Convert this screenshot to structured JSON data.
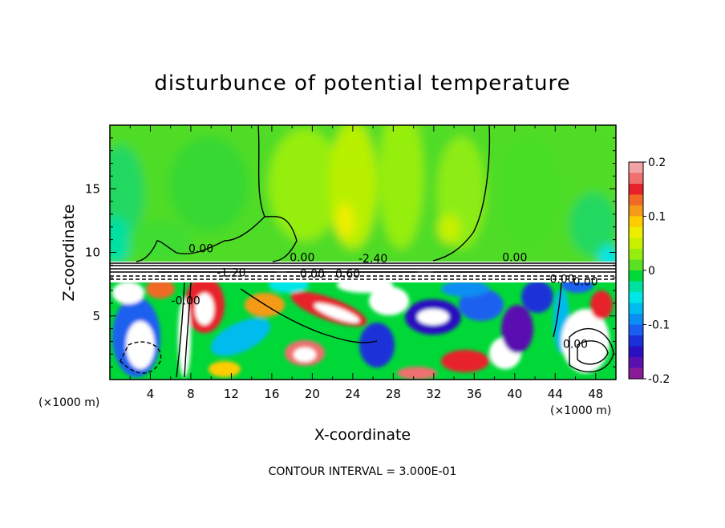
{
  "chart_data": {
    "type": "heatmap",
    "title": "disturbunce of potential temperature",
    "xlabel": "X-coordinate",
    "ylabel": "Z-coordinate",
    "x_unit": "(×1000 m)",
    "x_ticks": [
      "4",
      "8",
      "12",
      "16",
      "20",
      "24",
      "28",
      "32",
      "36",
      "40",
      "44",
      "48"
    ],
    "y_ticks": [
      "5",
      "10",
      "15"
    ],
    "xlim": [
      0,
      50
    ],
    "ylim": [
      0,
      20
    ],
    "colorbar": {
      "range": [
        -0.2,
        0.2
      ],
      "tick_labels": [
        "0.2",
        "0.1",
        "0",
        "-0.1",
        "-0.2"
      ],
      "colors": [
        "#f2a3a3",
        "#f07070",
        "#e8202a",
        "#f06a26",
        "#f59a18",
        "#ffcc00",
        "#eeee00",
        "#c8f000",
        "#96ee10",
        "#5ae020",
        "#00d838",
        "#00e0a0",
        "#00e6e6",
        "#00bcee",
        "#0a8ef2",
        "#1a60f0",
        "#1a30d8",
        "#2a10c0",
        "#5a10b0",
        "#8a1a9a"
      ]
    },
    "contour_labels": [
      "0.00",
      "0.00",
      "-0.00",
      "0.00",
      "-1.20",
      "0.60",
      "0.00",
      "-0.00",
      "0.00",
      "0.00",
      "-2.40"
    ],
    "footer": "CONTOUR INTERVAL = 3.000E-01"
  }
}
